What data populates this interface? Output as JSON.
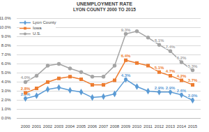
{
  "chart_data": {
    "type": "line",
    "title": "UNEMPLOYMENT RATE",
    "subtitle": "LYON COUNTY 2000 TO 2015",
    "categories": [
      "2000",
      "2001",
      "2002",
      "2003",
      "2004",
      "2005",
      "2006",
      "2007",
      "2008",
      "2009",
      "2010",
      "2011",
      "2012",
      "2013",
      "2014",
      "2015"
    ],
    "series": [
      {
        "name": "Lyon County",
        "color": "#5b9bd5",
        "marker": "diamond",
        "values": [
          2.2,
          2.5,
          3.2,
          3.4,
          3.1,
          2.9,
          2.3,
          2.4,
          2.7,
          4.3,
          3.5,
          3.0,
          2.9,
          2.9,
          2.6,
          2.0
        ],
        "value_labels": [
          "2.2%",
          null,
          null,
          null,
          null,
          null,
          null,
          null,
          null,
          "4.3%",
          null,
          null,
          "2.9%",
          "2.9%",
          "2.6%",
          "2.0%"
        ]
      },
      {
        "name": "Iowa",
        "color": "#ed7d31",
        "marker": "square",
        "values": [
          2.8,
          3.3,
          4.0,
          4.4,
          4.6,
          4.3,
          3.7,
          3.7,
          4.2,
          6.4,
          6.1,
          5.8,
          5.1,
          4.7,
          4.2,
          3.7
        ],
        "value_labels": [
          "2.8%",
          null,
          null,
          null,
          null,
          null,
          null,
          null,
          null,
          "6.4%",
          null,
          null,
          "5.1%",
          "4.7%",
          "4.2%",
          "3.7%"
        ]
      },
      {
        "name": "U.S.",
        "color": "#a5a5a5",
        "marker": "circle",
        "values": [
          4.0,
          4.7,
          5.8,
          6.0,
          5.5,
          5.1,
          4.6,
          4.6,
          5.8,
          9.3,
          9.6,
          8.9,
          8.1,
          7.4,
          6.2,
          5.3
        ],
        "value_labels": [
          "4.0%",
          null,
          null,
          null,
          null,
          null,
          null,
          null,
          null,
          "9.3%",
          null,
          null,
          "8.1%",
          "7.4%",
          "6.2%",
          "5.3%"
        ]
      }
    ],
    "ylim": [
      0,
      11
    ],
    "yticks": [
      {
        "value": 0,
        "label": "0.0%"
      },
      {
        "value": 1,
        "label": "1.0%"
      },
      {
        "value": 2,
        "label": "2.0%"
      },
      {
        "value": 3,
        "label": "3.0%"
      },
      {
        "value": 4,
        "label": "4.0%"
      },
      {
        "value": 5,
        "label": "5.0%"
      },
      {
        "value": 6,
        "label": "6.0%"
      },
      {
        "value": 7,
        "label": "7.0%"
      },
      {
        "value": 8,
        "label": "8.0%"
      },
      {
        "value": 9,
        "label": "9.0%"
      },
      {
        "value": 10,
        "label": "10.0%"
      },
      {
        "value": 11,
        "label": "11.0%"
      }
    ],
    "grid": true,
    "data_labels": true,
    "legend": "top-left"
  }
}
